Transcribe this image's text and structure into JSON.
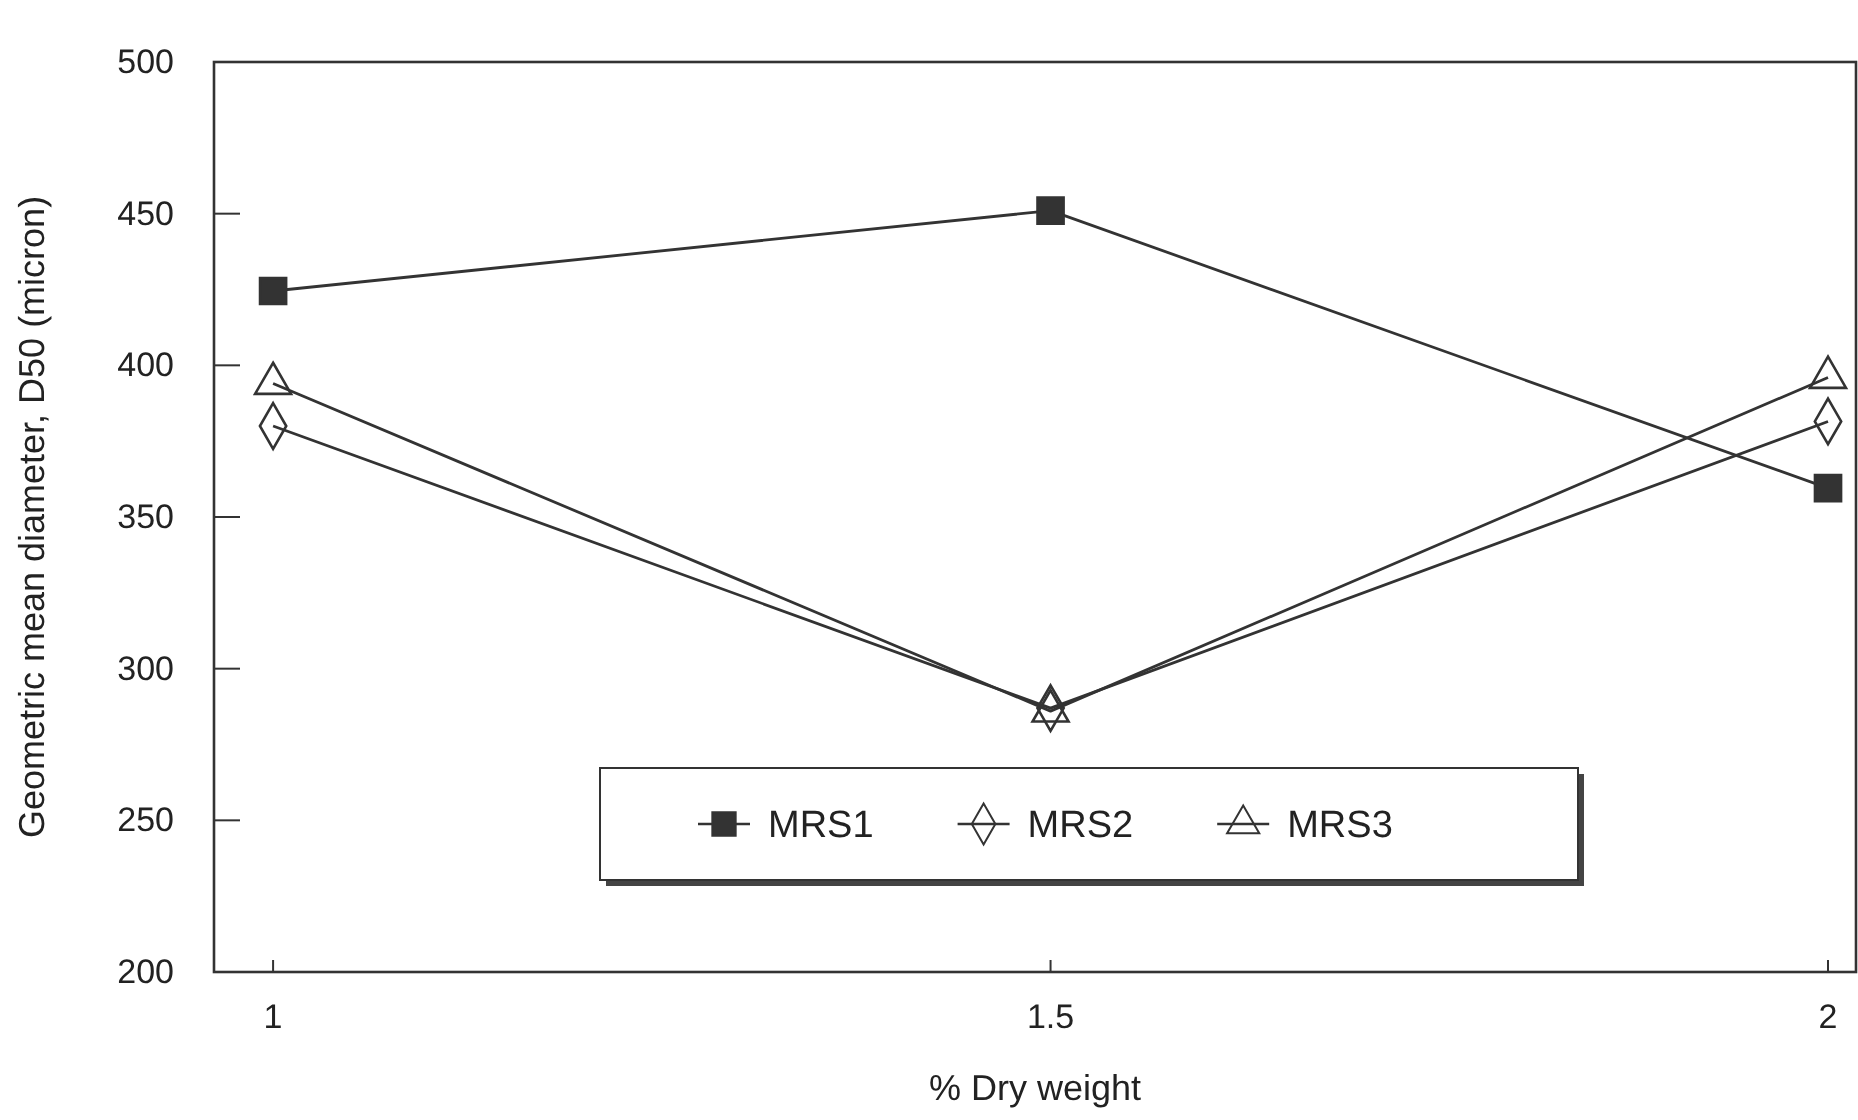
{
  "chart_data": {
    "type": "line",
    "xlabel": "% Dry weight",
    "ylabel": "Geometric mean diameter, D50 (micron)",
    "x": [
      1,
      1.5,
      2
    ],
    "xlim": [
      0.962,
      2.018
    ],
    "xticks": [
      1,
      1.5,
      2
    ],
    "ylim": [
      200,
      500
    ],
    "yticks": [
      200,
      250,
      300,
      350,
      400,
      450,
      500
    ],
    "grid": false,
    "legend": "bottom",
    "line_style": "solid",
    "series": [
      {
        "name": "MRS1",
        "color": "#333333",
        "marker": "square",
        "values": [
          424.5,
          451,
          359.5
        ]
      },
      {
        "name": "MRS2",
        "color": "#333333",
        "marker": "diamond",
        "values": [
          380,
          287,
          381.5
        ]
      },
      {
        "name": "MRS3",
        "color": "#333333",
        "marker": "triangle",
        "values": [
          394,
          286,
          396
        ]
      }
    ]
  }
}
